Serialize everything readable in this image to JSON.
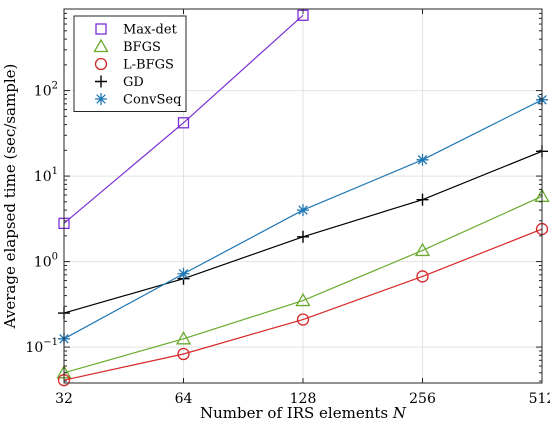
{
  "chart_data": {
    "type": "line",
    "xlabel": "Number of IRS elements",
    "xlabel_var": "N",
    "ylabel": "Average elapsed time (sec/sample)",
    "xscale": "log2",
    "yscale": "log",
    "x": [
      32,
      64,
      128,
      256,
      512
    ],
    "x_tick_labels": [
      "32",
      "64",
      "128",
      "256",
      "512"
    ],
    "xlim": [
      32,
      512
    ],
    "ylim": [
      0.038,
      900
    ],
    "y_ticks": [
      {
        "base": "10",
        "exp": "−1",
        "value": 0.1
      },
      {
        "base": "10",
        "exp": "0",
        "value": 1
      },
      {
        "base": "10",
        "exp": "1",
        "value": 10
      },
      {
        "base": "10",
        "exp": "2",
        "value": 100
      }
    ],
    "grid": true,
    "legend_position": "top-left",
    "series": [
      {
        "name": "Max-det",
        "marker": "square",
        "color": "#7b2fd6",
        "x": [
          32,
          64,
          128
        ],
        "values": [
          2.8,
          42,
          760
        ]
      },
      {
        "name": "BFGS",
        "marker": "triangle",
        "color": "#6aab2e",
        "x": [
          32,
          64,
          128,
          256,
          512
        ],
        "values": [
          0.05,
          0.125,
          0.35,
          1.35,
          5.8
        ]
      },
      {
        "name": "L-BFGS",
        "marker": "circle",
        "color": "#d62728",
        "x": [
          32,
          64,
          128,
          256,
          512
        ],
        "values": [
          0.041,
          0.083,
          0.21,
          0.67,
          2.4
        ]
      },
      {
        "name": "GD",
        "marker": "plus",
        "color": "#000000",
        "x": [
          32,
          64,
          128,
          256,
          512
        ],
        "values": [
          0.25,
          0.63,
          1.95,
          5.3,
          19.5
        ]
      },
      {
        "name": "ConvSeq",
        "marker": "asterisk",
        "color": "#1f77b4",
        "x": [
          32,
          64,
          128,
          256,
          512
        ],
        "values": [
          0.125,
          0.72,
          4.0,
          15.5,
          78
        ]
      }
    ]
  }
}
